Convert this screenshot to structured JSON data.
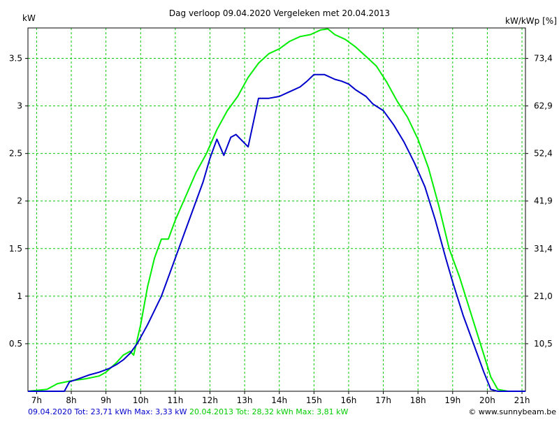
{
  "chart_data": {
    "type": "line",
    "title": "Dag  verloop 09.04.2020   Vergeleken met 20.04.2013",
    "ylabel_left": "kW",
    "ylabel_right": "kW/kWp [%]",
    "x_ticks": [
      "7h",
      "8h",
      "9h",
      "10h",
      "11h",
      "12h",
      "13h",
      "14h",
      "15h",
      "16h",
      "17h",
      "18h",
      "19h",
      "20h",
      "21h"
    ],
    "x_tick_values": [
      7,
      8,
      9,
      10,
      11,
      12,
      13,
      14,
      15,
      16,
      17,
      18,
      19,
      20,
      21
    ],
    "xlim": [
      6.75,
      21.1
    ],
    "y_left_ticks": [
      "0.5",
      "1",
      "1.5",
      "2",
      "2.5",
      "3",
      "3.5"
    ],
    "y_left_tick_values": [
      0.5,
      1,
      1.5,
      2,
      2.5,
      3,
      3.5
    ],
    "y_right_ticks": [
      "10,5",
      "21,0",
      "31,4",
      "41,9",
      "52,4",
      "62,9",
      "73,4"
    ],
    "ylim": [
      0,
      3.82
    ],
    "grid": true,
    "colors": {
      "series1": "#0000cc",
      "series2": "#00ee00",
      "grid": "#00cc00"
    },
    "series": [
      {
        "name": "09.04.2020",
        "x": [
          6.75,
          7.8,
          7.95,
          8.2,
          8.5,
          8.8,
          9.1,
          9.3,
          9.5,
          9.7,
          9.9,
          10.2,
          10.4,
          10.6,
          11.0,
          11.4,
          11.8,
          12.0,
          12.2,
          12.4,
          12.6,
          12.75,
          13.1,
          13.4,
          13.7,
          14.0,
          14.3,
          14.6,
          14.8,
          15.0,
          15.3,
          15.6,
          15.8,
          16.0,
          16.2,
          16.5,
          16.7,
          17.0,
          17.3,
          17.6,
          17.9,
          18.2,
          18.5,
          18.8,
          19.0,
          19.3,
          19.6,
          19.9,
          20.1,
          20.3,
          20.6,
          21.1
        ],
        "y": [
          0,
          0,
          0.1,
          0.13,
          0.17,
          0.2,
          0.24,
          0.28,
          0.33,
          0.4,
          0.5,
          0.7,
          0.85,
          1.0,
          1.4,
          1.8,
          2.2,
          2.45,
          2.65,
          2.48,
          2.67,
          2.7,
          2.57,
          3.08,
          3.08,
          3.1,
          3.15,
          3.2,
          3.26,
          3.33,
          3.33,
          3.28,
          3.26,
          3.23,
          3.17,
          3.1,
          3.02,
          2.95,
          2.8,
          2.62,
          2.4,
          2.15,
          1.8,
          1.4,
          1.15,
          0.8,
          0.5,
          0.2,
          0.02,
          0,
          0,
          0
        ]
      },
      {
        "name": "20.04.2013",
        "x": [
          6.75,
          7.3,
          7.6,
          8.0,
          8.4,
          8.8,
          9.0,
          9.3,
          9.5,
          9.7,
          9.8,
          10.0,
          10.2,
          10.4,
          10.6,
          10.8,
          11.0,
          11.3,
          11.6,
          11.9,
          12.2,
          12.5,
          12.8,
          13.1,
          13.4,
          13.7,
          14.0,
          14.3,
          14.6,
          14.9,
          15.2,
          15.4,
          15.6,
          15.9,
          16.2,
          16.5,
          16.8,
          17.1,
          17.4,
          17.7,
          18.0,
          18.3,
          18.6,
          18.9,
          19.2,
          19.5,
          19.8,
          20.1,
          20.3,
          20.6,
          21.1
        ],
        "y": [
          0,
          0.02,
          0.08,
          0.11,
          0.13,
          0.16,
          0.2,
          0.3,
          0.38,
          0.42,
          0.38,
          0.7,
          1.1,
          1.4,
          1.6,
          1.6,
          1.8,
          2.05,
          2.3,
          2.5,
          2.75,
          2.95,
          3.1,
          3.3,
          3.45,
          3.55,
          3.6,
          3.68,
          3.73,
          3.75,
          3.8,
          3.81,
          3.75,
          3.7,
          3.62,
          3.52,
          3.42,
          3.25,
          3.05,
          2.88,
          2.65,
          2.35,
          1.95,
          1.5,
          1.2,
          0.85,
          0.5,
          0.15,
          0.02,
          0,
          0
        ]
      }
    ],
    "footer": {
      "series1_text": "09.04.2020 Tot: 23,71 kWh Max: 3,33 kW",
      "series2_text": "20.04.2013 Tot: 28,32 kWh Max: 3,81 kW",
      "credit": "© www.sunnybeam.be"
    }
  }
}
